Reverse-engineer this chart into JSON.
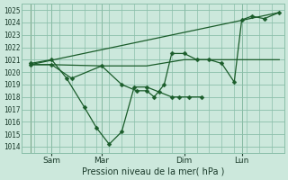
{
  "title": "Pression niveau de la mer( hPa )",
  "bg_color": "#cce8dc",
  "grid_color": "#8bbfaa",
  "line_color": "#1a5c2a",
  "ylim": [
    1013.5,
    1025.5
  ],
  "yticks": [
    1014,
    1015,
    1016,
    1017,
    1018,
    1019,
    1020,
    1021,
    1022,
    1023,
    1024,
    1025
  ],
  "xlim": [
    0,
    10.5
  ],
  "xtick_labels": [
    "Sam",
    "Mar",
    "Dim",
    "Lun"
  ],
  "xtick_positions": [
    1.2,
    3.2,
    6.5,
    8.8
  ],
  "vline_positions": [
    0.35,
    1.2,
    3.2,
    6.5,
    8.8
  ],
  "series1_x": [
    0.35,
    1.2,
    1.8,
    2.5,
    3.0,
    3.5,
    4.0,
    4.5,
    5.0,
    5.5,
    6.0,
    6.3,
    6.7,
    7.2
  ],
  "series1_y": [
    1020.7,
    1021.0,
    1019.5,
    1017.2,
    1015.5,
    1014.2,
    1015.2,
    1018.8,
    1018.8,
    1018.4,
    1018.0,
    1018.0,
    1018.0,
    1018.0
  ],
  "series2_x": [
    0.35,
    1.2,
    3.2,
    5.0,
    6.5,
    7.5,
    8.8,
    10.3
  ],
  "series2_y": [
    1020.6,
    1020.6,
    1020.5,
    1020.5,
    1021.0,
    1021.0,
    1021.0,
    1021.0
  ],
  "series3_x": [
    0.35,
    10.3
  ],
  "series3_y": [
    1020.6,
    1024.8
  ],
  "series4_x": [
    0.35,
    1.2,
    2.0,
    3.2,
    4.0,
    4.6,
    5.0,
    5.3,
    5.7,
    6.0,
    6.5,
    7.0,
    7.5,
    8.0,
    8.5,
    8.8,
    9.2,
    9.7,
    10.3
  ],
  "series4_y": [
    1020.6,
    1020.6,
    1019.5,
    1020.5,
    1019.0,
    1018.5,
    1018.5,
    1018.0,
    1019.0,
    1021.5,
    1021.5,
    1021.0,
    1021.0,
    1020.7,
    1019.2,
    1024.2,
    1024.5,
    1024.3,
    1024.8
  ]
}
